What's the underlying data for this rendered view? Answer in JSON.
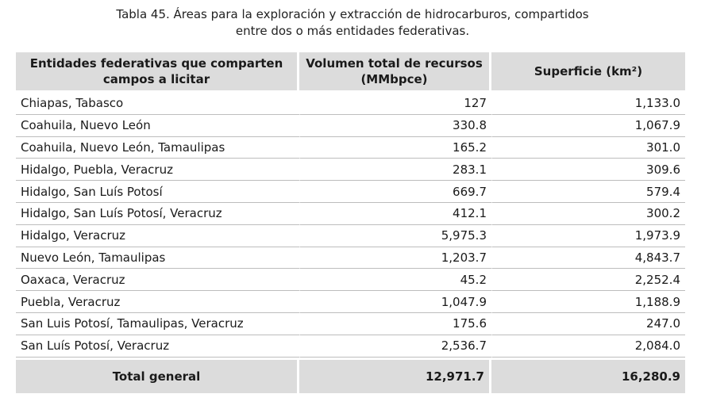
{
  "caption": {
    "line1": "Tabla 45. Áreas para la exploración y extracción de hidrocarburos, compartidos",
    "line2": "entre dos o más entidades federativas."
  },
  "table": {
    "headers": [
      "Entidades federativas que comparten campos a licitar",
      "Volumen total de recursos (MMbpce)",
      "Superficie (km²)"
    ],
    "rows": [
      {
        "entidades": "Chiapas, Tabasco",
        "volumen": "127",
        "superficie": "1,133.0"
      },
      {
        "entidades": "Coahuila, Nuevo León",
        "volumen": "330.8",
        "superficie": "1,067.9"
      },
      {
        "entidades": "Coahuila, Nuevo León, Tamaulipas",
        "volumen": "165.2",
        "superficie": "301.0"
      },
      {
        "entidades": "Hidalgo, Puebla, Veracruz",
        "volumen": "283.1",
        "superficie": "309.6"
      },
      {
        "entidades": "Hidalgo, San Luís Potosí",
        "volumen": "669.7",
        "superficie": "579.4"
      },
      {
        "entidades": "Hidalgo, San Luís Potosí, Veracruz",
        "volumen": "412.1",
        "superficie": "300.2"
      },
      {
        "entidades": "Hidalgo, Veracruz",
        "volumen": "5,975.3",
        "superficie": "1,973.9"
      },
      {
        "entidades": "Nuevo León, Tamaulipas",
        "volumen": "1,203.7",
        "superficie": "4,843.7"
      },
      {
        "entidades": "Oaxaca, Veracruz",
        "volumen": "45.2",
        "superficie": "2,252.4"
      },
      {
        "entidades": "Puebla, Veracruz",
        "volumen": "1,047.9",
        "superficie": "1,188.9"
      },
      {
        "entidades": "San Luis Potosí, Tamaulipas, Veracruz",
        "volumen": "175.6",
        "superficie": "247.0"
      },
      {
        "entidades": "San Luís Potosí, Veracruz",
        "volumen": "2,536.7",
        "superficie": "2,084.0"
      }
    ],
    "total": {
      "label": "Total general",
      "volumen": "12,971.7",
      "superficie": "16,280.9"
    }
  }
}
